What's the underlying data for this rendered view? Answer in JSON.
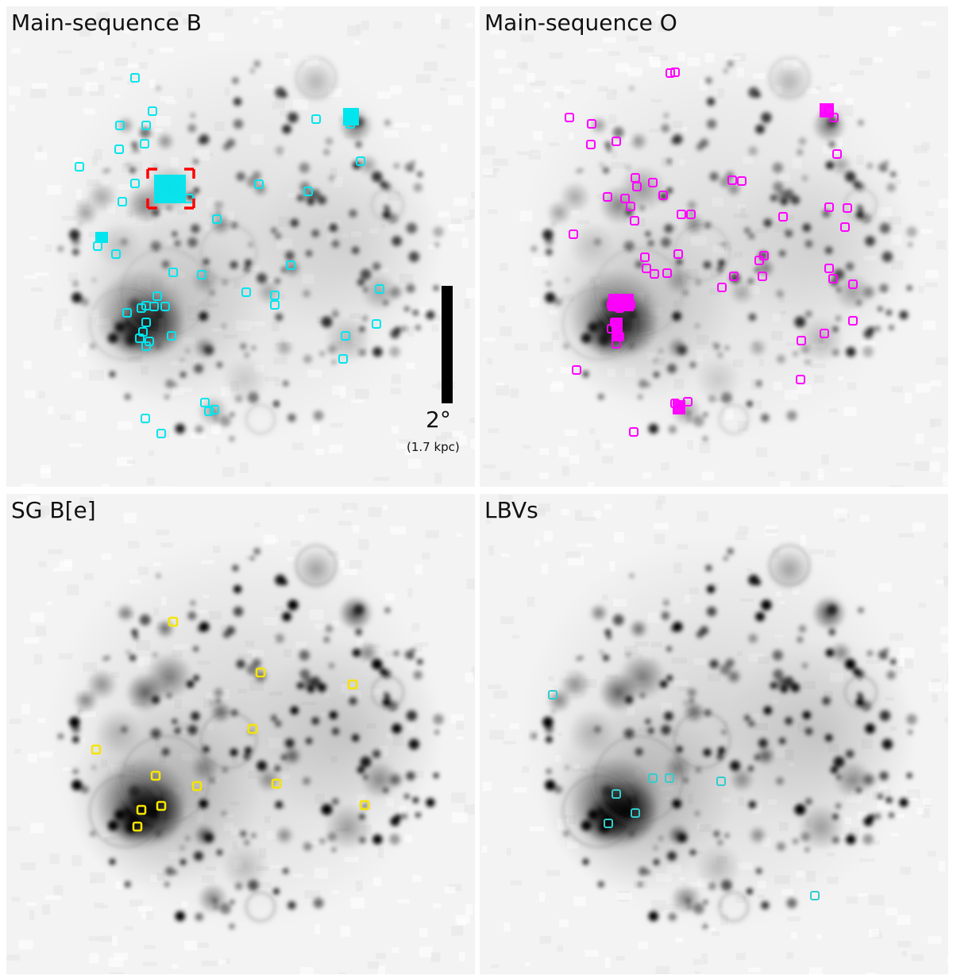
{
  "panels": [
    {
      "id": "ms-b",
      "title": "Main-sequence B",
      "marker_color": "#00e5ee"
    },
    {
      "id": "ms-o",
      "title": "Main-sequence O",
      "marker_color": "#ff00ff"
    },
    {
      "id": "sg-be",
      "title": "SG B[e]",
      "marker_color": "#f5e400"
    },
    {
      "id": "lbv",
      "title": "LBVs",
      "marker_color": "#33cccc"
    }
  ],
  "scalebar": {
    "angle_label": "2°",
    "distance_label": "(1.7 kpc)"
  },
  "highlight_box_color": "#ff0000",
  "image_colors": {
    "background": "#f3f3f3",
    "emission": "#000000"
  }
}
